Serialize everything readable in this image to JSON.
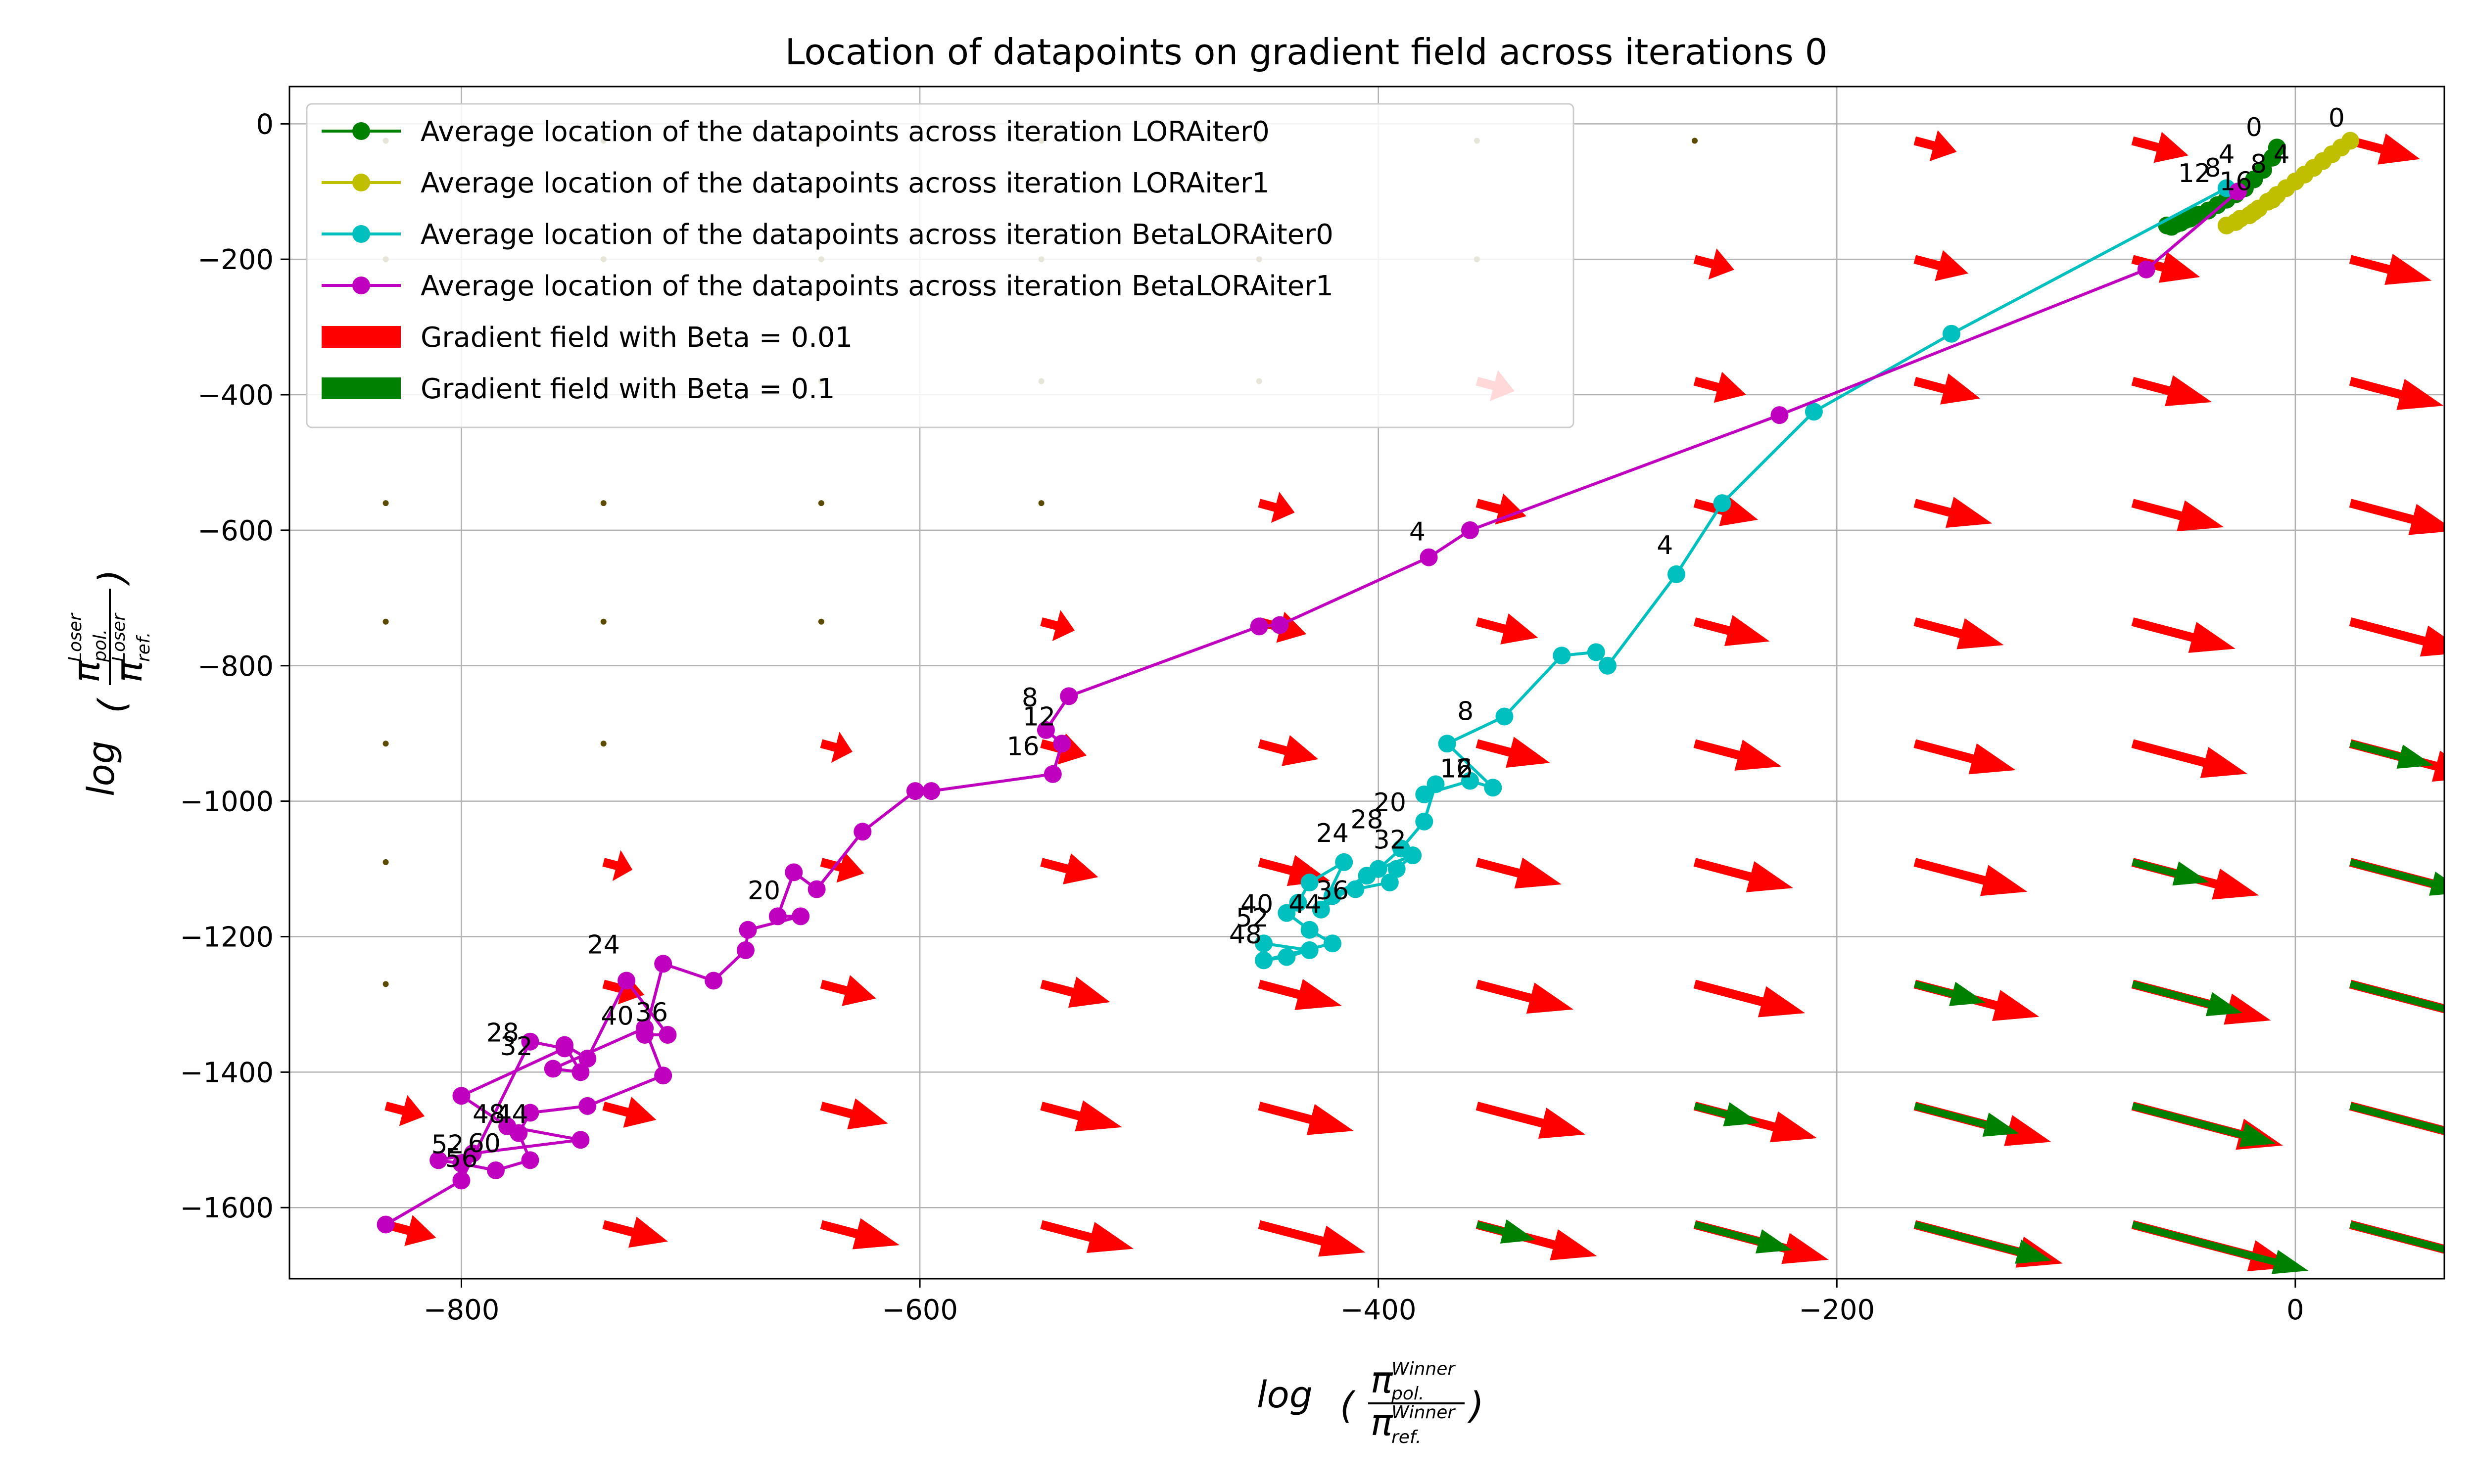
{
  "chart_data": {
    "type": "line",
    "title": "Location of datapoints on gradient field across iterations 0",
    "xlabel": {
      "prefix": "log",
      "num_sym": "π",
      "num_sub": "pol.",
      "num_sup": "Winner",
      "den_sym": "π",
      "den_sub": "ref.",
      "den_sup": "Winner"
    },
    "ylabel": {
      "prefix": "log",
      "num_sym": "π",
      "num_sub": "pol.",
      "num_sup": "Loser",
      "den_sym": "π",
      "den_sub": "ref.",
      "den_sup": "Loser"
    },
    "xlim": [
      -875,
      65
    ],
    "ylim": [
      -1705,
      55
    ],
    "xticks": [
      -800,
      -600,
      -400,
      -200,
      0
    ],
    "xtick_labels": [
      "−800",
      "−600",
      "−400",
      "−200",
      "0"
    ],
    "yticks": [
      0,
      -200,
      -400,
      -600,
      -800,
      -1000,
      -1200,
      -1400,
      -1600
    ],
    "ytick_labels": [
      "0",
      "−200",
      "−400",
      "−600",
      "−800",
      "−1000",
      "−1200",
      "−1400",
      "−1600"
    ],
    "grid": true,
    "legend_position": "top-left",
    "series": [
      {
        "name": "Average location of the datapoints across iteration LORAiter0",
        "color": "#008000",
        "points": [
          [
            -8,
            -35
          ],
          [
            -10,
            -50
          ],
          [
            -14,
            -68
          ],
          [
            -18,
            -82
          ],
          [
            -22,
            -95
          ],
          [
            -26,
            -104
          ],
          [
            -30,
            -112
          ],
          [
            -34,
            -120
          ],
          [
            -38,
            -128
          ],
          [
            -42,
            -134
          ],
          [
            -46,
            -140
          ],
          [
            -50,
            -146
          ],
          [
            -54,
            -152
          ],
          [
            -50,
            -145
          ],
          [
            -46,
            -138
          ],
          [
            -52,
            -148
          ],
          [
            -56,
            -150
          ],
          [
            -48,
            -142
          ],
          [
            -44,
            -136
          ]
        ],
        "labels": [
          {
            "text": "0",
            "x": -18,
            "y": -18
          },
          {
            "text": "4",
            "x": -30,
            "y": -58
          },
          {
            "text": "8",
            "x": -36,
            "y": -78
          },
          {
            "text": "12",
            "x": -44,
            "y": -86
          }
        ]
      },
      {
        "name": "Average location of the datapoints across iteration LORAiter1",
        "color": "#bfbf00",
        "points": [
          [
            24,
            -25
          ],
          [
            20,
            -35
          ],
          [
            16,
            -45
          ],
          [
            12,
            -55
          ],
          [
            8,
            -65
          ],
          [
            4,
            -75
          ],
          [
            0,
            -85
          ],
          [
            -4,
            -95
          ],
          [
            -8,
            -105
          ],
          [
            -12,
            -115
          ],
          [
            -16,
            -125
          ],
          [
            -20,
            -135
          ],
          [
            -26,
            -145
          ],
          [
            -30,
            -150
          ],
          [
            -24,
            -140
          ],
          [
            -18,
            -130
          ],
          [
            -10,
            -112
          ]
        ],
        "labels": [
          {
            "text": "0",
            "x": 18,
            "y": -4
          },
          {
            "text": "4",
            "x": -6,
            "y": -58
          },
          {
            "text": "8",
            "x": -16,
            "y": -72
          },
          {
            "text": "16",
            "x": -26,
            "y": -98
          }
        ]
      },
      {
        "name": "Average location of the datapoints across iteration BetaLORAiter0",
        "color": "#00bfbf",
        "points": [
          [
            -30,
            -95
          ],
          [
            -150,
            -310
          ],
          [
            -210,
            -425
          ],
          [
            -250,
            -560
          ],
          [
            -270,
            -665
          ],
          [
            -300,
            -800
          ],
          [
            -305,
            -780
          ],
          [
            -320,
            -785
          ],
          [
            -345,
            -875
          ],
          [
            -370,
            -915
          ],
          [
            -350,
            -980
          ],
          [
            -360,
            -970
          ],
          [
            -380,
            -990
          ],
          [
            -375,
            -975
          ],
          [
            -380,
            -1030
          ],
          [
            -390,
            -1070
          ],
          [
            -400,
            -1100
          ],
          [
            -385,
            -1080
          ],
          [
            -392,
            -1100
          ],
          [
            -395,
            -1120
          ],
          [
            -410,
            -1130
          ],
          [
            -420,
            -1140
          ],
          [
            -405,
            -1110
          ],
          [
            -425,
            -1160
          ],
          [
            -415,
            -1090
          ],
          [
            -430,
            -1120
          ],
          [
            -435,
            -1150
          ],
          [
            -440,
            -1165
          ],
          [
            -430,
            -1190
          ],
          [
            -420,
            -1210
          ],
          [
            -450,
            -1235
          ],
          [
            -440,
            -1230
          ],
          [
            -430,
            -1220
          ],
          [
            -450,
            -1210
          ]
        ],
        "labels": [
          {
            "text": "4",
            "x": -275,
            "y": -635
          },
          {
            "text": "8",
            "x": -362,
            "y": -880
          },
          {
            "text": "12",
            "x": -366,
            "y": -965
          },
          {
            "text": "16",
            "x": -366,
            "y": -965
          },
          {
            "text": "20",
            "x": -395,
            "y": -1015
          },
          {
            "text": "24",
            "x": -420,
            "y": -1060
          },
          {
            "text": "28",
            "x": -405,
            "y": -1040
          },
          {
            "text": "32",
            "x": -395,
            "y": -1070
          },
          {
            "text": "36",
            "x": -420,
            "y": -1145
          },
          {
            "text": "40",
            "x": -453,
            "y": -1165
          },
          {
            "text": "44",
            "x": -432,
            "y": -1165
          },
          {
            "text": "48",
            "x": -458,
            "y": -1210
          },
          {
            "text": "52",
            "x": -455,
            "y": -1185
          }
        ]
      },
      {
        "name": "Average location of the datapoints across iteration BetaLORAiter1",
        "color": "#bf00bf",
        "points": [
          [
            -25,
            -100
          ],
          [
            -65,
            -215
          ],
          [
            -225,
            -430
          ],
          [
            -360,
            -600
          ],
          [
            -378,
            -640
          ],
          [
            -443,
            -740
          ],
          [
            -452,
            -742
          ],
          [
            -535,
            -845
          ],
          [
            -545,
            -895
          ],
          [
            -538,
            -915
          ],
          [
            -542,
            -960
          ],
          [
            -595,
            -985
          ],
          [
            -602,
            -985
          ],
          [
            -625,
            -1045
          ],
          [
            -645,
            -1130
          ],
          [
            -655,
            -1105
          ],
          [
            -662,
            -1170
          ],
          [
            -652,
            -1170
          ],
          [
            -675,
            -1190
          ],
          [
            -676,
            -1220
          ],
          [
            -690,
            -1265
          ],
          [
            -712,
            -1240
          ],
          [
            -720,
            -1345
          ],
          [
            -710,
            -1345
          ],
          [
            -728,
            -1265
          ],
          [
            -745,
            -1380
          ],
          [
            -755,
            -1360
          ],
          [
            -748,
            -1400
          ],
          [
            -760,
            -1395
          ],
          [
            -720,
            -1335
          ],
          [
            -712,
            -1405
          ],
          [
            -745,
            -1450
          ],
          [
            -770,
            -1460
          ],
          [
            -775,
            -1490
          ],
          [
            -770,
            -1530
          ],
          [
            -785,
            -1545
          ],
          [
            -800,
            -1535
          ],
          [
            -810,
            -1530
          ],
          [
            -795,
            -1520
          ],
          [
            -748,
            -1500
          ],
          [
            -780,
            -1480
          ],
          [
            -800,
            -1435
          ],
          [
            -755,
            -1365
          ],
          [
            -770,
            -1355
          ],
          [
            -800,
            -1560
          ],
          [
            -833,
            -1625
          ]
        ],
        "labels": [
          {
            "text": "4",
            "x": -383,
            "y": -615
          },
          {
            "text": "8",
            "x": -552,
            "y": -860
          },
          {
            "text": "12",
            "x": -548,
            "y": -888
          },
          {
            "text": "16",
            "x": -555,
            "y": -932
          },
          {
            "text": "20",
            "x": -668,
            "y": -1145
          },
          {
            "text": "24",
            "x": -738,
            "y": -1225
          },
          {
            "text": "28",
            "x": -782,
            "y": -1355
          },
          {
            "text": "32",
            "x": -776,
            "y": -1375
          },
          {
            "text": "36",
            "x": -717,
            "y": -1325
          },
          {
            "text": "40",
            "x": -732,
            "y": -1330
          },
          {
            "text": "44",
            "x": -778,
            "y": -1475
          },
          {
            "text": "48",
            "x": -788,
            "y": -1475
          },
          {
            "text": "52",
            "x": -806,
            "y": -1520
          },
          {
            "text": "56",
            "x": -800,
            "y": -1540
          },
          {
            "text": "60",
            "x": -790,
            "y": -1518
          }
        ]
      }
    ],
    "fields": [
      {
        "name": "Gradient field with Beta = 0.01",
        "color": "#ff0000"
      },
      {
        "name": "Gradient field with Beta = 0.1",
        "color": "#008000"
      }
    ],
    "field_grid": {
      "x": [
        -833,
        -738,
        -643,
        -547,
        -452,
        -357,
        -262,
        -166,
        -71,
        24
      ],
      "y": [
        -25,
        -200,
        -380,
        -560,
        -735,
        -915,
        -1090,
        -1270,
        -1450,
        -1625
      ]
    }
  }
}
